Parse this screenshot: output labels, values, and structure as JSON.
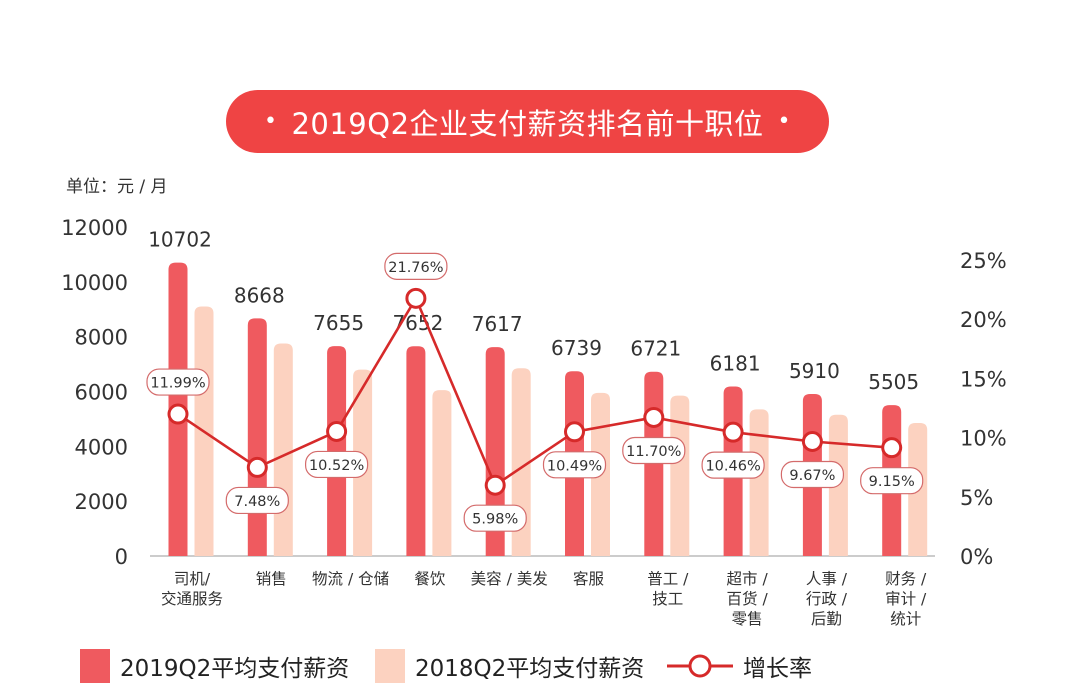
{
  "title": "2019Q2企业支付薪资排名前十职位",
  "title_dot": "•",
  "unit_label": "单位：元 / 月",
  "colors": {
    "bar2019": "#ef5a5f",
    "bar2018": "#fcd2c0",
    "line": "#d62a2a",
    "title_bg": "#ef4444"
  },
  "legend": {
    "series2019": "2019Q2平均支付薪资",
    "series2018": "2018Q2平均支付薪资",
    "growth": "增长率"
  },
  "chart_data": {
    "type": "bar",
    "title": "2019Q2企业支付薪资排名前十职位",
    "categories": [
      [
        "司机/",
        "交通服务"
      ],
      [
        "销售"
      ],
      [
        "物流 / 仓储"
      ],
      [
        "餐饮"
      ],
      [
        "美容 / 美发"
      ],
      [
        "客服"
      ],
      [
        "普工 /",
        "技工"
      ],
      [
        "超市 /",
        "百货 /",
        "零售"
      ],
      [
        "人事 /",
        "行政 /",
        "后勤"
      ],
      [
        "财务 /",
        "审计 /",
        "统计"
      ]
    ],
    "series": [
      {
        "name": "2019Q2平均支付薪资",
        "values": [
          10702,
          8668,
          7655,
          7652,
          7617,
          6739,
          6721,
          6181,
          5910,
          5505
        ],
        "data_labels": [
          "10702",
          "8668",
          "7655",
          "7652",
          "7617",
          "6739",
          "6721",
          "6181",
          "5910",
          "5505"
        ]
      },
      {
        "name": "2018Q2平均支付薪资",
        "values": [
          9100,
          7750,
          6800,
          6050,
          6850,
          5950,
          5850,
          5350,
          5150,
          4850
        ]
      },
      {
        "name": "增长率",
        "type": "line",
        "axis": "right",
        "values": [
          11.99,
          7.48,
          10.52,
          21.76,
          5.98,
          10.49,
          11.7,
          10.46,
          9.67,
          9.15
        ],
        "data_labels": [
          "11.99%",
          "7.48%",
          "10.52%",
          "21.76%",
          "5.98%",
          "10.49%",
          "11.70%",
          "10.46%",
          "9.67%",
          "9.15%"
        ]
      }
    ],
    "y_left": {
      "min": 0,
      "max": 12000,
      "ticks": [
        "0",
        "2000",
        "4000",
        "6000",
        "8000",
        "10000",
        "12000"
      ]
    },
    "y_right": {
      "min": 0,
      "max": 25,
      "ticks": [
        "0%",
        "5%",
        "10%",
        "15%",
        "20%",
        "25%"
      ]
    },
    "legend_position": "bottom",
    "grid": false
  }
}
